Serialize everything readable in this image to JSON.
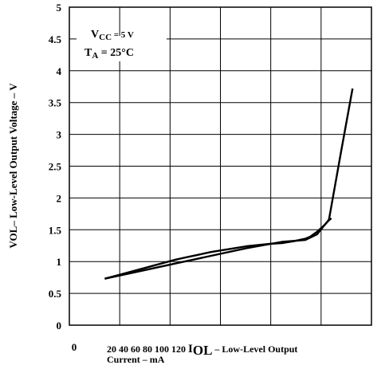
{
  "chart_data": {
    "type": "line",
    "ylabel": "VOL– Low-Level Output Voltage – V",
    "xlabel_line1_prefix": "20 40 60 80 100 120",
    "xlabel_sym": "I",
    "xlabel_sub": "OL",
    "xlabel_line1_suffix": " – Low-Level Output",
    "xlabel_line2": "Current – mA",
    "x_zero_label": "0",
    "y_ticks": [
      "0",
      "0.5",
      "1",
      "1.5",
      "2",
      "2.5",
      "3",
      "3.5",
      "4",
      "4.5",
      "5"
    ],
    "ylim": [
      0,
      5
    ],
    "xlim": [
      0,
      128
    ],
    "grid": true,
    "legend_box": {
      "vcc_sym": "V",
      "vcc_sub": "CC",
      "vcc_val": " = 5 V",
      "ta_sym": "T",
      "ta_sub": "A",
      "ta_val": " = 25°C"
    },
    "series": [
      {
        "x": [
          15,
          20,
          25,
          30,
          35,
          40,
          45,
          50,
          55,
          60,
          65,
          70,
          75,
          80,
          85,
          90,
          95,
          100,
          102,
          105,
          108,
          110,
          111
        ],
        "values": [
          0.73,
          0.78,
          0.83,
          0.88,
          0.93,
          0.98,
          1.03,
          1.07,
          1.11,
          1.15,
          1.18,
          1.21,
          1.24,
          1.26,
          1.28,
          1.29,
          1.32,
          1.36,
          1.39,
          1.47,
          1.57,
          1.65,
          1.68
        ]
      },
      {
        "x": [
          15,
          30,
          45,
          60,
          75,
          90,
          100,
          105,
          110,
          115,
          120
        ],
        "values": [
          0.73,
          0.85,
          0.97,
          1.09,
          1.21,
          1.31,
          1.34,
          1.43,
          1.66,
          2.7,
          3.72
        ]
      }
    ]
  }
}
